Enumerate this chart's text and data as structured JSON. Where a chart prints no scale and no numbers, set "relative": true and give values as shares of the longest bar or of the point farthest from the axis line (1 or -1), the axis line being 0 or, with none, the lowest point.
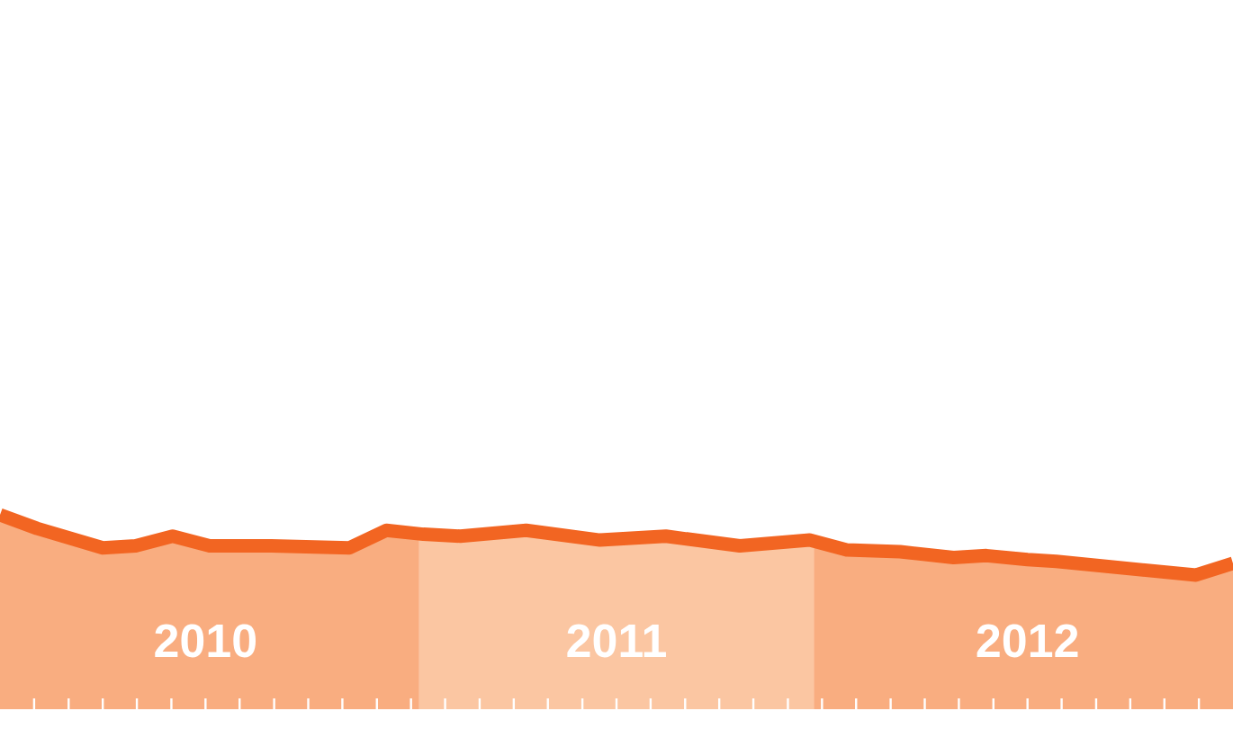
{
  "chart_data": {
    "type": "area",
    "relative": true,
    "x": [
      2010,
      2010.09,
      2010.25,
      2010.33,
      2010.42,
      2010.51,
      2010.66,
      2010.85,
      2010.94,
      2011.03,
      2011.12,
      2011.28,
      2011.46,
      2011.62,
      2011.8,
      2011.97,
      2012.06,
      2012.19,
      2012.32,
      2012.4,
      2012.5,
      2012.57,
      2012.91,
      2013
    ],
    "values": [
      1.0,
      0.93,
      0.83,
      0.84,
      0.89,
      0.84,
      0.84,
      0.83,
      0.92,
      0.9,
      0.89,
      0.92,
      0.87,
      0.89,
      0.84,
      0.87,
      0.82,
      0.81,
      0.78,
      0.79,
      0.77,
      0.76,
      0.69,
      0.75
    ],
    "color": "#f26522",
    "xlim": [
      2010,
      2013
    ],
    "xticks": [
      {
        "value": 2010.083,
        "label": null
      },
      {
        "value": 2010.167,
        "label": null
      },
      {
        "value": 2010.25,
        "label": null
      },
      {
        "value": 2010.333,
        "label": null
      },
      {
        "value": 2010.417,
        "label": null
      },
      {
        "value": 2010.5,
        "label": "2010"
      },
      {
        "value": 2010.583,
        "label": null
      },
      {
        "value": 2010.667,
        "label": null
      },
      {
        "value": 2010.75,
        "label": null
      },
      {
        "value": 2010.833,
        "label": null
      },
      {
        "value": 2010.917,
        "label": null
      },
      {
        "value": 2011,
        "label": null
      },
      {
        "value": 2011.083,
        "label": null
      },
      {
        "value": 2011.167,
        "label": null
      },
      {
        "value": 2011.25,
        "label": null
      },
      {
        "value": 2011.333,
        "label": null
      },
      {
        "value": 2011.417,
        "label": null
      },
      {
        "value": 2011.5,
        "label": "2011"
      },
      {
        "value": 2011.583,
        "label": null
      },
      {
        "value": 2011.667,
        "label": null
      },
      {
        "value": 2011.75,
        "label": null
      },
      {
        "value": 2011.833,
        "label": null
      },
      {
        "value": 2011.917,
        "label": null
      },
      {
        "value": 2012,
        "label": null
      },
      {
        "value": 2012.083,
        "label": null
      },
      {
        "value": 2012.167,
        "label": null
      },
      {
        "value": 2012.25,
        "label": null
      },
      {
        "value": 2012.333,
        "label": null
      },
      {
        "value": 2012.417,
        "label": null
      },
      {
        "value": 2012.5,
        "label": "2012"
      },
      {
        "value": 2012.583,
        "label": null
      },
      {
        "value": 2012.667,
        "label": null
      },
      {
        "value": 2012.75,
        "label": null
      },
      {
        "value": 2012.833,
        "label": null
      },
      {
        "value": 2012.917,
        "label": null
      }
    ],
    "bands": [
      {
        "axis": "x",
        "from": 2010,
        "to": 2011.02,
        "color": "#f9ad80"
      },
      {
        "axis": "x",
        "from": 2011.02,
        "to": 2011.98,
        "color": "#fbc6a2"
      },
      {
        "axis": "x",
        "from": 2011.98,
        "to": 2013,
        "color": "#f9ad80"
      }
    ]
  }
}
